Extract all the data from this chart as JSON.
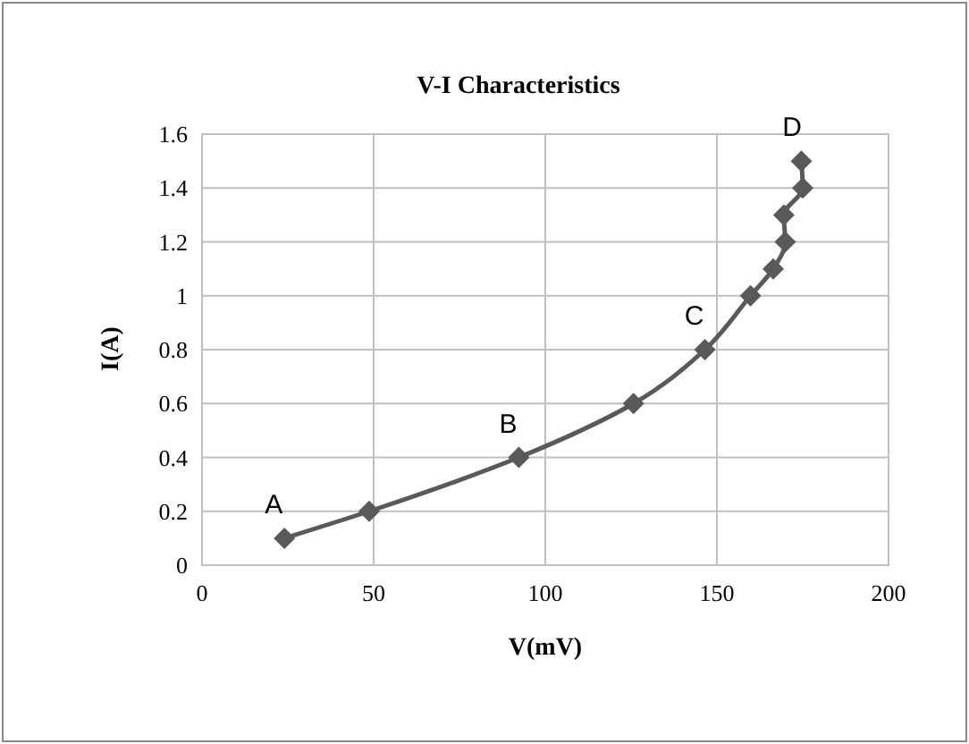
{
  "chart_data": {
    "type": "line",
    "title": "V-I Characteristics",
    "xlabel": "V(mV)",
    "ylabel": "I(A)",
    "x": [
      24,
      48.7,
      92.3,
      125.7,
      146.5,
      159.8,
      166.4,
      169.9,
      169.5,
      175,
      174.6
    ],
    "series": [
      {
        "color": "#595959",
        "values": [
          0.1,
          0.2,
          0.4,
          0.6,
          0.8,
          1.0,
          1.1,
          1.2,
          1.3,
          1.4,
          1.5
        ]
      }
    ],
    "xlim": [
      0,
      200
    ],
    "xticks": [
      0,
      50,
      100,
      150,
      200
    ],
    "ylim": [
      0,
      1.6
    ],
    "yticks": [
      0,
      0.2,
      0.4,
      0.6,
      0.8,
      1,
      1.2,
      1.4,
      1.6
    ],
    "grid": true,
    "marker": "diamond",
    "line_style": "solid",
    "annotations": [
      {
        "text": "A",
        "x": 24,
        "y": 0.1
      },
      {
        "text": "B",
        "x": 92.3,
        "y": 0.4
      },
      {
        "text": "C",
        "x": 146.5,
        "y": 0.8
      },
      {
        "text": "D",
        "x": 175,
        "y": 1.5
      }
    ]
  }
}
